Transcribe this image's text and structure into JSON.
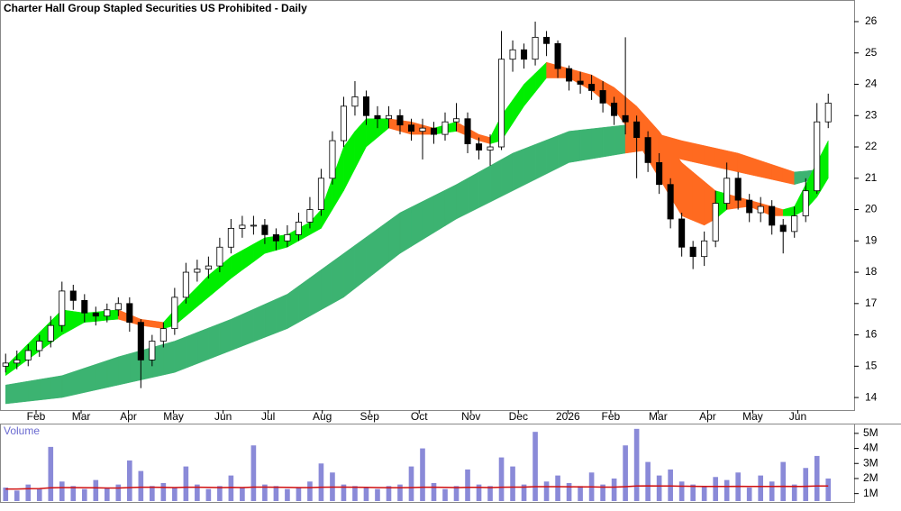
{
  "chart_data": {
    "type": "candlestick",
    "title": "Charter Hall Group Stapled Securities US Prohibited - Daily",
    "x": [
      0,
      1,
      2,
      3,
      4,
      5,
      6,
      7,
      8,
      9,
      10,
      11,
      12,
      13,
      14,
      15,
      16,
      17,
      18,
      19,
      20,
      21,
      22,
      23,
      24,
      25,
      26,
      27,
      28,
      29,
      30,
      31,
      32,
      33,
      34,
      35,
      36,
      37,
      38,
      39,
      40,
      41,
      42,
      43,
      44,
      45,
      46,
      47,
      48,
      49,
      50,
      51,
      52,
      53,
      54,
      55,
      56,
      57,
      58,
      59,
      60,
      61,
      62,
      63,
      64,
      65,
      66,
      67,
      68,
      69,
      70,
      71,
      72,
      73
    ],
    "xlim": [
      -0.5,
      75.3
    ],
    "xticks": [
      {
        "value": 2.7,
        "label": "Feb"
      },
      {
        "value": 6.7,
        "label": "Mar"
      },
      {
        "value": 10.9,
        "label": "Apr"
      },
      {
        "value": 14.9,
        "label": "May"
      },
      {
        "value": 19.3,
        "label": "Jun"
      },
      {
        "value": 23.3,
        "label": "Jul"
      },
      {
        "value": 28.1,
        "label": "Aug"
      },
      {
        "value": 32.3,
        "label": "Sep"
      },
      {
        "value": 36.7,
        "label": "Oct"
      },
      {
        "value": 41.3,
        "label": "Nov"
      },
      {
        "value": 45.5,
        "label": "Dec"
      },
      {
        "value": 49.9,
        "label": "2026"
      },
      {
        "value": 53.7,
        "label": "Feb"
      },
      {
        "value": 57.9,
        "label": "Mar"
      },
      {
        "value": 62.3,
        "label": "Apr"
      },
      {
        "value": 66.3,
        "label": "May"
      },
      {
        "value": 70.3,
        "label": "Jun"
      }
    ],
    "ylim": [
      13.6,
      26.69
    ],
    "yticks": [
      14,
      15,
      16,
      17,
      18,
      19,
      20,
      21,
      22,
      23,
      24,
      25,
      26
    ],
    "open": [
      15.0,
      15.1,
      15.2,
      15.5,
      15.8,
      16.3,
      17.4,
      17.1,
      16.7,
      16.6,
      16.8,
      17.0,
      16.4,
      15.2,
      15.8,
      16.2,
      17.2,
      18.0,
      18.1,
      18.2,
      18.8,
      19.4,
      19.5,
      19.5,
      19.2,
      19.0,
      19.2,
      19.6,
      20.0,
      21.0,
      22.2,
      23.3,
      23.6,
      23.0,
      22.9,
      23.0,
      22.7,
      22.5,
      22.6,
      22.4,
      22.8,
      22.9,
      22.1,
      21.9,
      22.0,
      24.8,
      25.1,
      24.8,
      25.5,
      25.3,
      24.5,
      24.1,
      24.0,
      23.8,
      23.4,
      23.0,
      22.8,
      22.3,
      21.5,
      20.8,
      19.7,
      18.8,
      18.5,
      19.0,
      20.2,
      21.0,
      20.3,
      19.9,
      20.1,
      19.5,
      19.3,
      19.8,
      20.6,
      22.8
    ],
    "high": [
      15.4,
      15.5,
      15.7,
      16.0,
      16.6,
      17.7,
      17.6,
      17.3,
      16.9,
      17.0,
      17.2,
      17.2,
      16.5,
      16.0,
      16.4,
      17.5,
      18.3,
      18.4,
      18.5,
      19.1,
      19.7,
      19.8,
      19.8,
      19.7,
      19.4,
      19.5,
      19.9,
      20.4,
      21.3,
      22.5,
      23.6,
      24.1,
      23.8,
      23.3,
      23.3,
      23.2,
      22.9,
      22.9,
      22.8,
      23.1,
      23.4,
      23.1,
      22.3,
      22.4,
      25.7,
      25.4,
      25.3,
      26.0,
      25.7,
      25.4,
      24.6,
      24.4,
      24.3,
      24.1,
      23.6,
      25.5,
      23.0,
      22.5,
      21.8,
      21.0,
      19.9,
      19.0,
      19.3,
      20.6,
      21.5,
      21.2,
      20.5,
      20.4,
      20.3,
      19.7,
      20.1,
      21.0,
      23.4,
      23.7
    ],
    "low": [
      14.8,
      14.9,
      15.0,
      15.3,
      15.6,
      16.1,
      16.8,
      16.4,
      16.3,
      16.4,
      16.6,
      16.1,
      14.3,
      15.0,
      15.6,
      16.0,
      17.0,
      17.7,
      17.8,
      18.0,
      18.6,
      19.1,
      19.2,
      18.9,
      18.7,
      18.8,
      19.0,
      19.4,
      19.8,
      20.8,
      22.0,
      23.0,
      22.7,
      22.6,
      22.6,
      22.4,
      22.2,
      21.6,
      22.1,
      22.2,
      22.5,
      21.8,
      21.6,
      21.4,
      21.9,
      24.4,
      24.5,
      24.6,
      24.9,
      24.2,
      23.8,
      23.7,
      23.5,
      23.1,
      22.7,
      22.4,
      21.0,
      21.2,
      20.5,
      19.4,
      18.5,
      18.1,
      18.2,
      18.8,
      20.0,
      20.0,
      19.6,
      19.6,
      19.2,
      18.6,
      19.1,
      19.6,
      20.5,
      22.6
    ],
    "close": [
      15.1,
      15.2,
      15.5,
      15.8,
      16.3,
      17.4,
      17.1,
      16.7,
      16.6,
      16.8,
      17.0,
      16.4,
      15.2,
      15.8,
      16.2,
      17.2,
      18.0,
      18.1,
      18.2,
      18.8,
      19.4,
      19.5,
      19.5,
      19.2,
      19.0,
      19.2,
      19.6,
      20.0,
      21.0,
      22.2,
      23.3,
      23.6,
      23.0,
      22.9,
      23.0,
      22.7,
      22.5,
      22.6,
      22.4,
      22.8,
      22.9,
      22.1,
      21.9,
      22.0,
      24.8,
      25.1,
      24.8,
      25.5,
      25.3,
      24.5,
      24.1,
      24.0,
      23.8,
      23.4,
      23.0,
      22.8,
      22.3,
      21.5,
      20.8,
      19.7,
      18.8,
      18.5,
      19.0,
      20.2,
      21.0,
      20.3,
      19.9,
      20.1,
      19.5,
      19.3,
      19.8,
      20.6,
      22.8,
      23.4
    ],
    "candle_up_color": "#ffffff",
    "candle_down_color": "#000000",
    "ribbons": [
      {
        "upper": [
          14.4,
          14.46,
          14.52,
          14.58,
          14.64,
          14.7,
          14.82,
          14.94,
          15.06,
          15.18,
          15.3,
          15.4,
          15.5,
          15.6,
          15.7,
          15.8,
          15.94,
          16.08,
          16.22,
          16.36,
          16.5,
          16.66,
          16.82,
          16.98,
          17.14,
          17.3,
          17.56,
          17.82,
          18.08,
          18.34,
          18.6,
          18.86,
          19.12,
          19.38,
          19.64,
          19.9,
          20.08,
          20.26,
          20.44,
          20.62,
          20.8,
          21.0,
          21.2,
          21.4,
          21.6,
          21.8,
          21.94,
          22.08,
          22.22,
          22.36,
          22.5,
          22.54,
          22.58,
          22.62,
          22.66,
          22.7,
          22.6,
          22.5,
          22.4,
          22.3,
          22.2,
          22.12,
          22.04,
          21.96,
          21.88,
          21.8,
          21.68,
          21.56,
          21.44,
          21.32,
          21.2,
          21.23,
          21.27,
          21.3
        ],
        "lower": [
          13.8,
          13.84,
          13.88,
          13.92,
          13.96,
          14.0,
          14.08,
          14.16,
          14.24,
          14.32,
          14.4,
          14.48,
          14.56,
          14.64,
          14.72,
          14.8,
          14.94,
          15.08,
          15.22,
          15.36,
          15.5,
          15.64,
          15.78,
          15.92,
          16.06,
          16.2,
          16.4,
          16.6,
          16.8,
          17.0,
          17.2,
          17.48,
          17.76,
          18.04,
          18.32,
          18.6,
          18.82,
          19.04,
          19.26,
          19.48,
          19.7,
          19.88,
          20.06,
          20.24,
          20.42,
          20.6,
          20.78,
          20.96,
          21.14,
          21.32,
          21.5,
          21.56,
          21.62,
          21.68,
          21.74,
          21.8,
          21.85,
          21.9,
          21.8,
          21.7,
          21.6,
          21.52,
          21.44,
          21.36,
          21.28,
          21.2,
          21.12,
          21.04,
          20.96,
          20.88,
          20.8,
          20.9,
          20.95,
          21.0
        ],
        "up_color": "#3cb371",
        "down_color": "#ff6a20"
      },
      {
        "upper": [
          15.0,
          15.36,
          15.72,
          16.08,
          16.44,
          16.8,
          16.75,
          16.7,
          16.73,
          16.77,
          16.8,
          16.65,
          16.5,
          16.45,
          16.4,
          16.8,
          17.17,
          17.53,
          17.9,
          18.2,
          18.5,
          18.7,
          18.9,
          19.1,
          19.15,
          19.2,
          19.4,
          19.6,
          20.0,
          21.0,
          22.0,
          22.5,
          22.9,
          22.9,
          22.9,
          22.85,
          22.8,
          22.7,
          22.6,
          22.7,
          22.8,
          22.6,
          22.4,
          22.3,
          23.0,
          23.5,
          24.0,
          24.35,
          24.7,
          24.6,
          24.5,
          24.4,
          24.3,
          24.1,
          23.9,
          23.6,
          23.3,
          22.9,
          22.5,
          22.0,
          21.5,
          21.2,
          20.9,
          20.6,
          20.5,
          20.4,
          20.3,
          20.2,
          20.1,
          20.0,
          20.1,
          20.8,
          21.5,
          22.2
        ],
        "lower": [
          14.7,
          14.96,
          15.22,
          15.48,
          15.74,
          16.0,
          16.2,
          16.4,
          16.43,
          16.47,
          16.5,
          16.4,
          16.3,
          16.25,
          16.2,
          16.3,
          16.6,
          16.9,
          17.2,
          17.5,
          17.8,
          18.07,
          18.33,
          18.6,
          18.7,
          18.8,
          19.0,
          19.2,
          19.4,
          20.0,
          20.6,
          21.3,
          22.0,
          22.3,
          22.6,
          22.5,
          22.4,
          22.4,
          22.4,
          22.45,
          22.5,
          22.35,
          22.2,
          22.1,
          22.2,
          22.75,
          23.3,
          23.75,
          24.2,
          24.2,
          24.2,
          24.0,
          23.8,
          23.5,
          23.2,
          22.7,
          22.2,
          21.6,
          21.0,
          20.4,
          19.8,
          19.65,
          19.5,
          19.7,
          20.0,
          20.05,
          20.1,
          19.95,
          19.8,
          19.8,
          19.8,
          20.0,
          20.4,
          21.0
        ],
        "up_color": "#00ee00",
        "down_color": "#ff6a20"
      }
    ],
    "volume": {
      "label": "Volume",
      "color": "#8a8ad8",
      "average_color": "#d01010",
      "ylim": [
        0.5,
        5.65
      ],
      "yticks": [
        {
          "value": 1,
          "label": "1M"
        },
        {
          "value": 2,
          "label": "2M"
        },
        {
          "value": 3,
          "label": "3M"
        },
        {
          "value": 4,
          "label": "4M"
        },
        {
          "value": 5,
          "label": "5M"
        }
      ],
      "values": [
        1.4,
        1.2,
        1.6,
        1.3,
        4.1,
        1.8,
        1.5,
        1.3,
        1.9,
        1.4,
        1.6,
        3.2,
        2.5,
        1.5,
        1.7,
        1.4,
        2.8,
        1.6,
        1.3,
        1.5,
        2.2,
        1.4,
        4.2,
        1.6,
        1.5,
        1.3,
        1.4,
        1.8,
        3.0,
        2.4,
        1.6,
        1.5,
        1.4,
        1.3,
        1.5,
        1.6,
        2.8,
        4.0,
        1.7,
        1.3,
        1.5,
        2.6,
        1.6,
        1.5,
        3.4,
        2.8,
        1.6,
        5.1,
        1.8,
        2.2,
        1.7,
        1.5,
        2.4,
        1.6,
        2.0,
        4.2,
        5.3,
        3.1,
        2.2,
        2.6,
        1.8,
        1.6,
        1.5,
        2.1,
        1.9,
        2.4,
        1.4,
        2.2,
        1.8,
        3.1,
        1.6,
        2.7,
        3.5,
        2.0
      ],
      "average": [
        1.3,
        1.3,
        1.32,
        1.33,
        1.38,
        1.4,
        1.4,
        1.39,
        1.38,
        1.37,
        1.37,
        1.4,
        1.42,
        1.42,
        1.41,
        1.4,
        1.42,
        1.42,
        1.41,
        1.4,
        1.41,
        1.4,
        1.43,
        1.43,
        1.42,
        1.41,
        1.4,
        1.4,
        1.42,
        1.43,
        1.43,
        1.42,
        1.41,
        1.4,
        1.39,
        1.39,
        1.4,
        1.42,
        1.42,
        1.41,
        1.4,
        1.41,
        1.41,
        1.4,
        1.42,
        1.43,
        1.43,
        1.46,
        1.46,
        1.46,
        1.45,
        1.44,
        1.44,
        1.43,
        1.43,
        1.46,
        1.5,
        1.51,
        1.5,
        1.5,
        1.49,
        1.48,
        1.47,
        1.47,
        1.47,
        1.48,
        1.47,
        1.47,
        1.47,
        1.48,
        1.47,
        1.48,
        1.5,
        1.5
      ]
    }
  }
}
